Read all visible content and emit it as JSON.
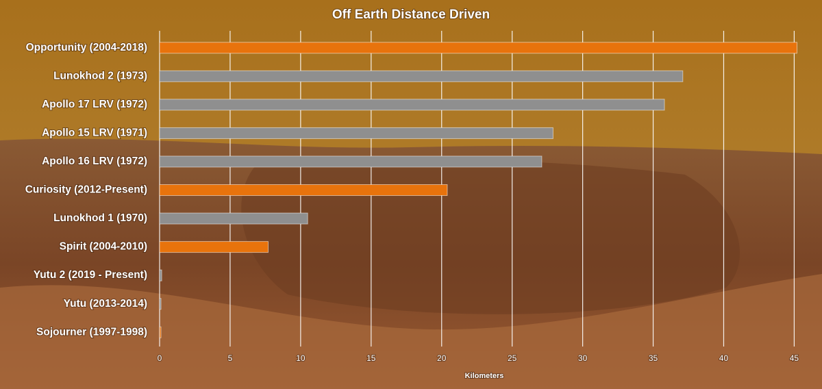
{
  "chart_data": {
    "type": "bar",
    "orientation": "horizontal",
    "title": "Off Earth Distance Driven",
    "categories": [
      "Opportunity (2004-2018)",
      "Lunokhod 2 (1973)",
      "Apollo 17 LRV (1972)",
      "Apollo 15 LRV (1971)",
      "Apollo 16 LRV (1972)",
      "Curiosity (2012-Present)",
      "Lunokhod 1 (1970)",
      "Spirit (2004-2010)",
      "Yutu 2 (2019 - Present)",
      "Yutu (2013-2014)",
      "Sojourner (1997-1998)"
    ],
    "values": [
      45.2,
      37.1,
      35.8,
      27.9,
      27.1,
      20.4,
      10.5,
      7.7,
      0.15,
      0.1,
      0.1
    ],
    "colors": [
      "#e8730c",
      "#8f8f8f",
      "#8f8f8f",
      "#8f8f8f",
      "#8f8f8f",
      "#e8730c",
      "#8f8f8f",
      "#e8730c",
      "#8f8f8f",
      "#8f8f8f",
      "#e8730c"
    ],
    "xlabel": "Kilometers",
    "xlim": [
      0,
      46
    ],
    "xticks": [
      0,
      5,
      10,
      15,
      20,
      25,
      30,
      35,
      40,
      45
    ],
    "grid": true
  }
}
